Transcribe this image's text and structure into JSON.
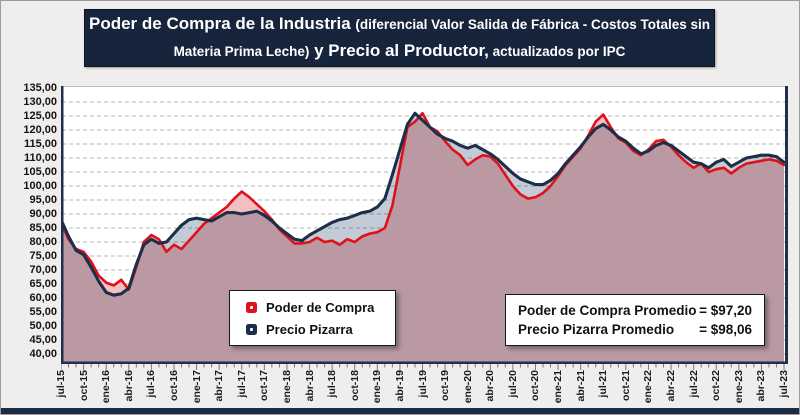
{
  "title": {
    "line1_big": "Poder de Compra de la Industria ",
    "line1_small": "(diferencial Valor Salida de Fábrica - Costos Totales sin",
    "line2_small_a": "Materia Prima Leche)",
    "line2_big": " y Precio al Productor,",
    "line2_small_b": " actualizados por IPC"
  },
  "legend": {
    "items": [
      {
        "label": "Poder de Compra",
        "color": "#e0111a"
      },
      {
        "label": "Precio Pizarra",
        "color": "#1d2e49"
      }
    ]
  },
  "stats": {
    "rows": [
      {
        "label": "Poder de Compra Promedio",
        "value": "= $97,20"
      },
      {
        "label": "Precio Pizarra Promedio",
        "value": "= $98,06"
      }
    ]
  },
  "chart_data": {
    "type": "area",
    "title": "Poder de Compra de la Industria (diferencial Valor Salida de Fábrica - Costos Totales sin Materia Prima Leche) y Precio al Productor, actualizados por IPC",
    "x_unit": "month",
    "x_range": [
      "jul-15",
      "jul-23"
    ],
    "x_tick_labels": [
      "jul-15",
      "oct-15",
      "ene-16",
      "abr-16",
      "jul-16",
      "oct-16",
      "ene-17",
      "abr-17",
      "jul-17",
      "oct-17",
      "ene-18",
      "abr-18",
      "jul-18",
      "oct-18",
      "ene-19",
      "abr-19",
      "jul-19",
      "oct-19",
      "ene-20",
      "abr-20",
      "jul-20",
      "oct-20",
      "ene-21",
      "abr-21",
      "jul-21",
      "oct-21",
      "ene-22",
      "abr-22",
      "jul-22",
      "oct-22",
      "ene-23",
      "abr-23",
      "jul-23"
    ],
    "y_tick_labels": [
      "135,00",
      "130,00",
      "125,00",
      "120,00",
      "115,00",
      "110,00",
      "105,00",
      "100,00",
      "95,00",
      "90,00",
      "85,00",
      "80,00",
      "75,00",
      "70,00",
      "65,00",
      "60,00",
      "55,00",
      "50,00",
      "45,00",
      "40,00"
    ],
    "ylim": [
      40,
      135
    ],
    "ytick_step": 5,
    "grid": "horizontal-dashed",
    "legend_position": "inside-bottom-left",
    "series": [
      {
        "name": "Poder de Compra",
        "line_color": "#e0111a",
        "fill_color": "#f3bfc2",
        "values": [
          87,
          81,
          77.5,
          76.5,
          73,
          68,
          65.5,
          64.5,
          66.5,
          63,
          71,
          80,
          82.5,
          81,
          76.5,
          79,
          77.5,
          80.5,
          83.5,
          86.5,
          88.5,
          90.5,
          92.5,
          95.5,
          98,
          96,
          93.5,
          91,
          88,
          84.5,
          82,
          79.5,
          79.5,
          80,
          81.5,
          80,
          80.5,
          79,
          81,
          80,
          82,
          83,
          83.5,
          85,
          93,
          107,
          121,
          123,
          126,
          121,
          119.5,
          116,
          113,
          111,
          107.5,
          109.5,
          111,
          110.5,
          108,
          104,
          100,
          97,
          95.5,
          96,
          97.5,
          100,
          103.5,
          107.5,
          110.5,
          113.5,
          118,
          123,
          125.5,
          121,
          117,
          115.5,
          112.5,
          111,
          113,
          116,
          116.5,
          114,
          111,
          108.5,
          106.5,
          108,
          105,
          106,
          106.5,
          104.5,
          106.5,
          108,
          108.5,
          109,
          109.5,
          109,
          107.5
        ]
      },
      {
        "name": "Precio Pizarra",
        "line_color": "#1d2e49",
        "fill_color": "#c3ccd6",
        "values": [
          88,
          82,
          77,
          75.5,
          71,
          66,
          62,
          61,
          61.5,
          63.5,
          72,
          79,
          81,
          79.5,
          80,
          83,
          86,
          88,
          88.5,
          88,
          87.5,
          89,
          90.5,
          90.5,
          90,
          90.5,
          91,
          89.5,
          87.5,
          85,
          83,
          81,
          80.5,
          82.5,
          84,
          85.5,
          87,
          88,
          88.5,
          89.5,
          90.5,
          91,
          92.5,
          95.5,
          104,
          113,
          122,
          126,
          123.5,
          121,
          118.5,
          117,
          116,
          114.5,
          113.5,
          114.5,
          113,
          111.5,
          109.5,
          107,
          104.5,
          102.5,
          101.5,
          100.5,
          100.5,
          102,
          104.5,
          108,
          111,
          114,
          117.5,
          120.5,
          122,
          120,
          117.5,
          116,
          113.5,
          111.5,
          112.5,
          114.5,
          115.5,
          114.5,
          112.5,
          110.5,
          108.5,
          108,
          106.5,
          108.5,
          109.5,
          107,
          108.5,
          110,
          110.5,
          111,
          111,
          110.5,
          108.5
        ]
      }
    ],
    "annotations": [
      "Poder de Compra Promedio = $97,20",
      "Precio Pizarra Promedio = $98,06"
    ]
  }
}
